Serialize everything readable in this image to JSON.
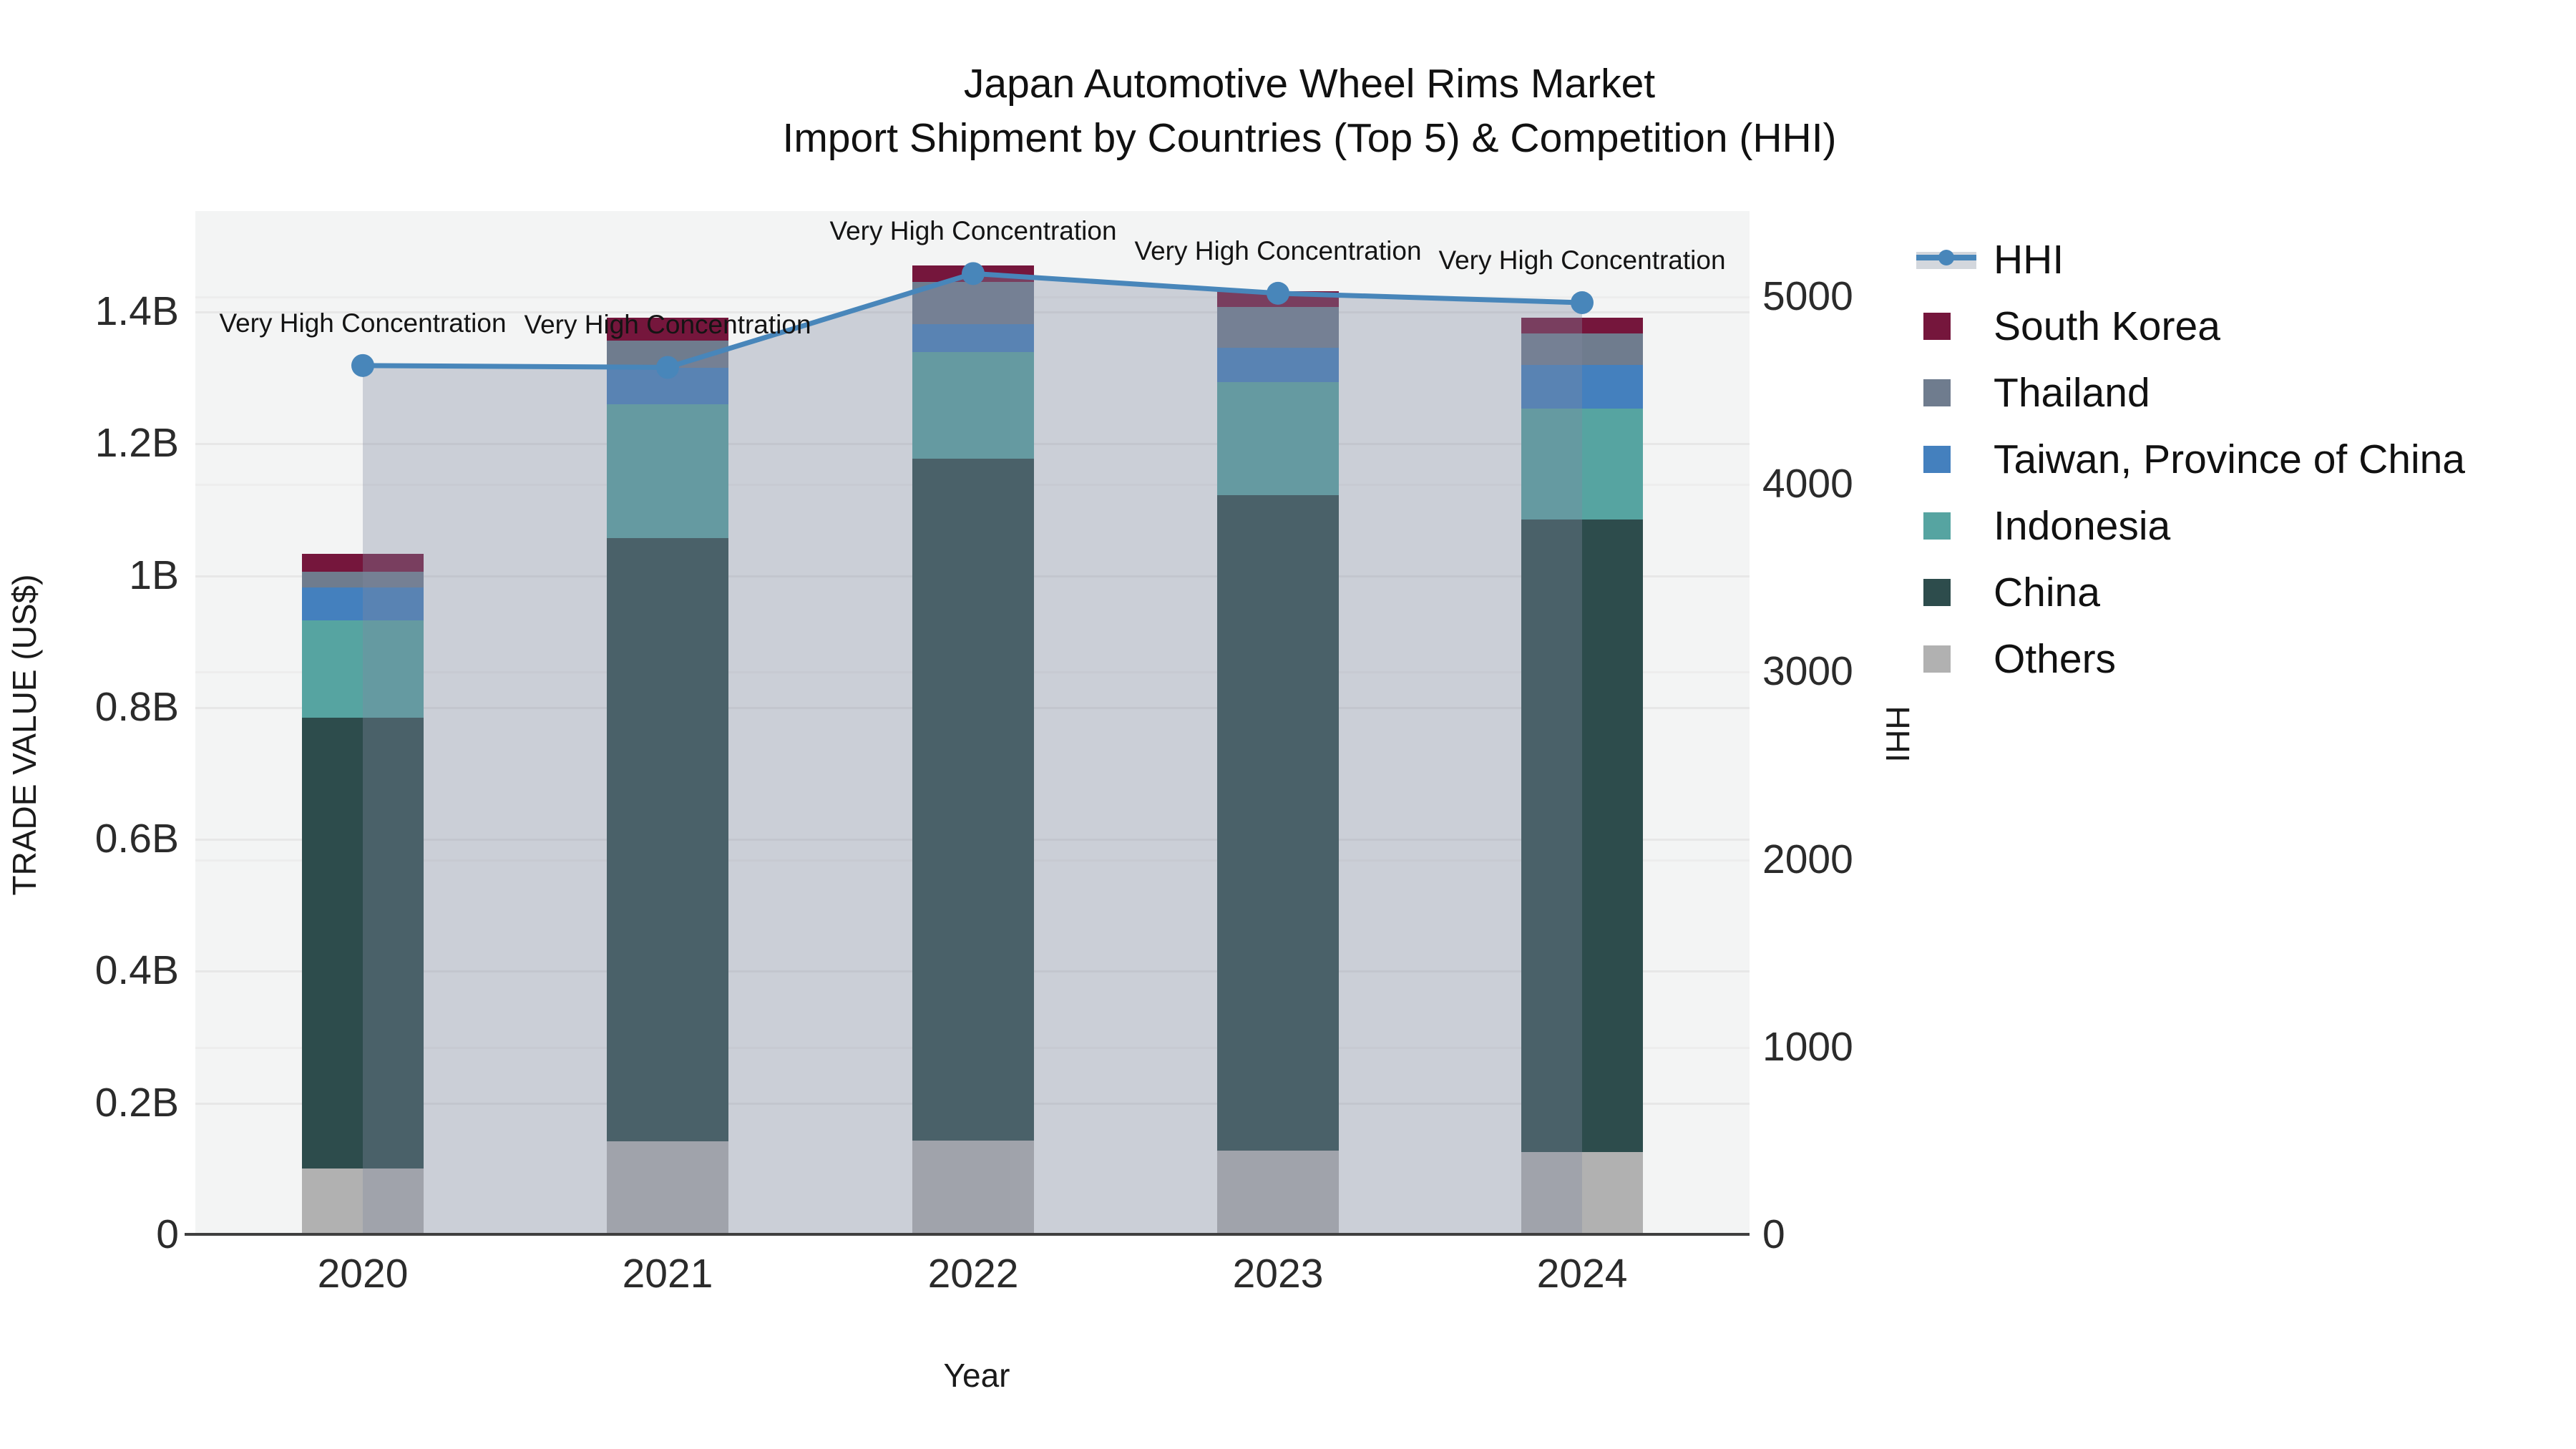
{
  "title": {
    "line1": "Japan Automotive Wheel Rims Market",
    "line2": "Import Shipment by Countries (Top 5) & Competition (HHI)"
  },
  "axes": {
    "y_left": {
      "title": "TRADE VALUE (US$)",
      "ticks": [
        {
          "label": "0",
          "value": 0
        },
        {
          "label": "0.2B",
          "value": 0.2
        },
        {
          "label": "0.4B",
          "value": 0.4
        },
        {
          "label": "0.6B",
          "value": 0.6
        },
        {
          "label": "0.8B",
          "value": 0.8
        },
        {
          "label": "1B",
          "value": 1.0
        },
        {
          "label": "1.2B",
          "value": 1.2
        },
        {
          "label": "1.4B",
          "value": 1.4
        }
      ]
    },
    "y_right": {
      "title": "HHI",
      "ticks": [
        {
          "label": "0",
          "value": 0
        },
        {
          "label": "1000",
          "value": 1000
        },
        {
          "label": "2000",
          "value": 2000
        },
        {
          "label": "3000",
          "value": 3000
        },
        {
          "label": "4000",
          "value": 4000
        },
        {
          "label": "5000",
          "value": 5000
        }
      ]
    },
    "x": {
      "title": "Year"
    }
  },
  "legend": {
    "items": [
      {
        "label": "HHI",
        "color": "#4886ba",
        "kind": "line"
      },
      {
        "label": "South Korea",
        "color": "#75163c",
        "kind": "square"
      },
      {
        "label": "Thailand",
        "color": "#6f7c8e",
        "kind": "square"
      },
      {
        "label": "Taiwan, Province of China",
        "color": "#4480be",
        "kind": "square"
      },
      {
        "label": "Indonesia",
        "color": "#56a4a1",
        "kind": "square"
      },
      {
        "label": "China",
        "color": "#2d4c4c",
        "kind": "square"
      },
      {
        "label": "Others",
        "color": "#b1b1b1",
        "kind": "square"
      }
    ]
  },
  "chart_data": {
    "type": "combo-stacked-bar-line",
    "title": "Japan Automotive Wheel Rims Market — Import Shipment by Countries (Top 5) & Competition (HHI)",
    "categories": [
      "2020",
      "2021",
      "2022",
      "2023",
      "2024"
    ],
    "bar_value_unit": "billion US$",
    "series": [
      {
        "name": "Others",
        "type": "bar",
        "color": "#b1b1b1",
        "values": [
          0.1,
          0.141,
          0.142,
          0.127,
          0.125
        ]
      },
      {
        "name": "China",
        "type": "bar",
        "color": "#2d4c4c",
        "values": [
          0.684,
          0.915,
          1.034,
          0.994,
          0.959
        ]
      },
      {
        "name": "Indonesia",
        "type": "bar",
        "color": "#56a4a1",
        "values": [
          0.147,
          0.203,
          0.162,
          0.172,
          0.168
        ]
      },
      {
        "name": "Taiwan, Province of China",
        "type": "bar",
        "color": "#4480be",
        "values": [
          0.05,
          0.055,
          0.043,
          0.052,
          0.067
        ]
      },
      {
        "name": "Thailand",
        "type": "bar",
        "color": "#6f7c8e",
        "values": [
          0.024,
          0.041,
          0.063,
          0.061,
          0.047
        ]
      },
      {
        "name": "South Korea",
        "type": "bar",
        "color": "#75163c",
        "values": [
          0.027,
          0.035,
          0.025,
          0.024,
          0.024
        ]
      }
    ],
    "stack_totals_billion": [
      1.032,
      1.39,
      1.469,
      1.43,
      1.39
    ],
    "line_series": {
      "name": "HHI",
      "axis": "right",
      "color": "#4886ba",
      "fill": "rgba(128,138,160,0.35)",
      "values": [
        4630,
        4620,
        5120,
        5015,
        4965
      ]
    },
    "annotations": [
      {
        "text": "Very High Concentration",
        "x": "2020"
      },
      {
        "text": "Very High Concentration",
        "x": "2021"
      },
      {
        "text": "Very High Concentration",
        "x": "2022"
      },
      {
        "text": "Very High Concentration",
        "x": "2023"
      },
      {
        "text": "Very High Concentration",
        "x": "2024"
      }
    ],
    "xlabel": "Year",
    "ylabel": "TRADE VALUE (US$)",
    "y2label": "HHI",
    "ylim_billion": [
      0,
      1.552
    ],
    "y2lim": [
      0,
      5455
    ],
    "grid": true,
    "legend_position": "right",
    "plot_background": "#f3f4f4"
  }
}
